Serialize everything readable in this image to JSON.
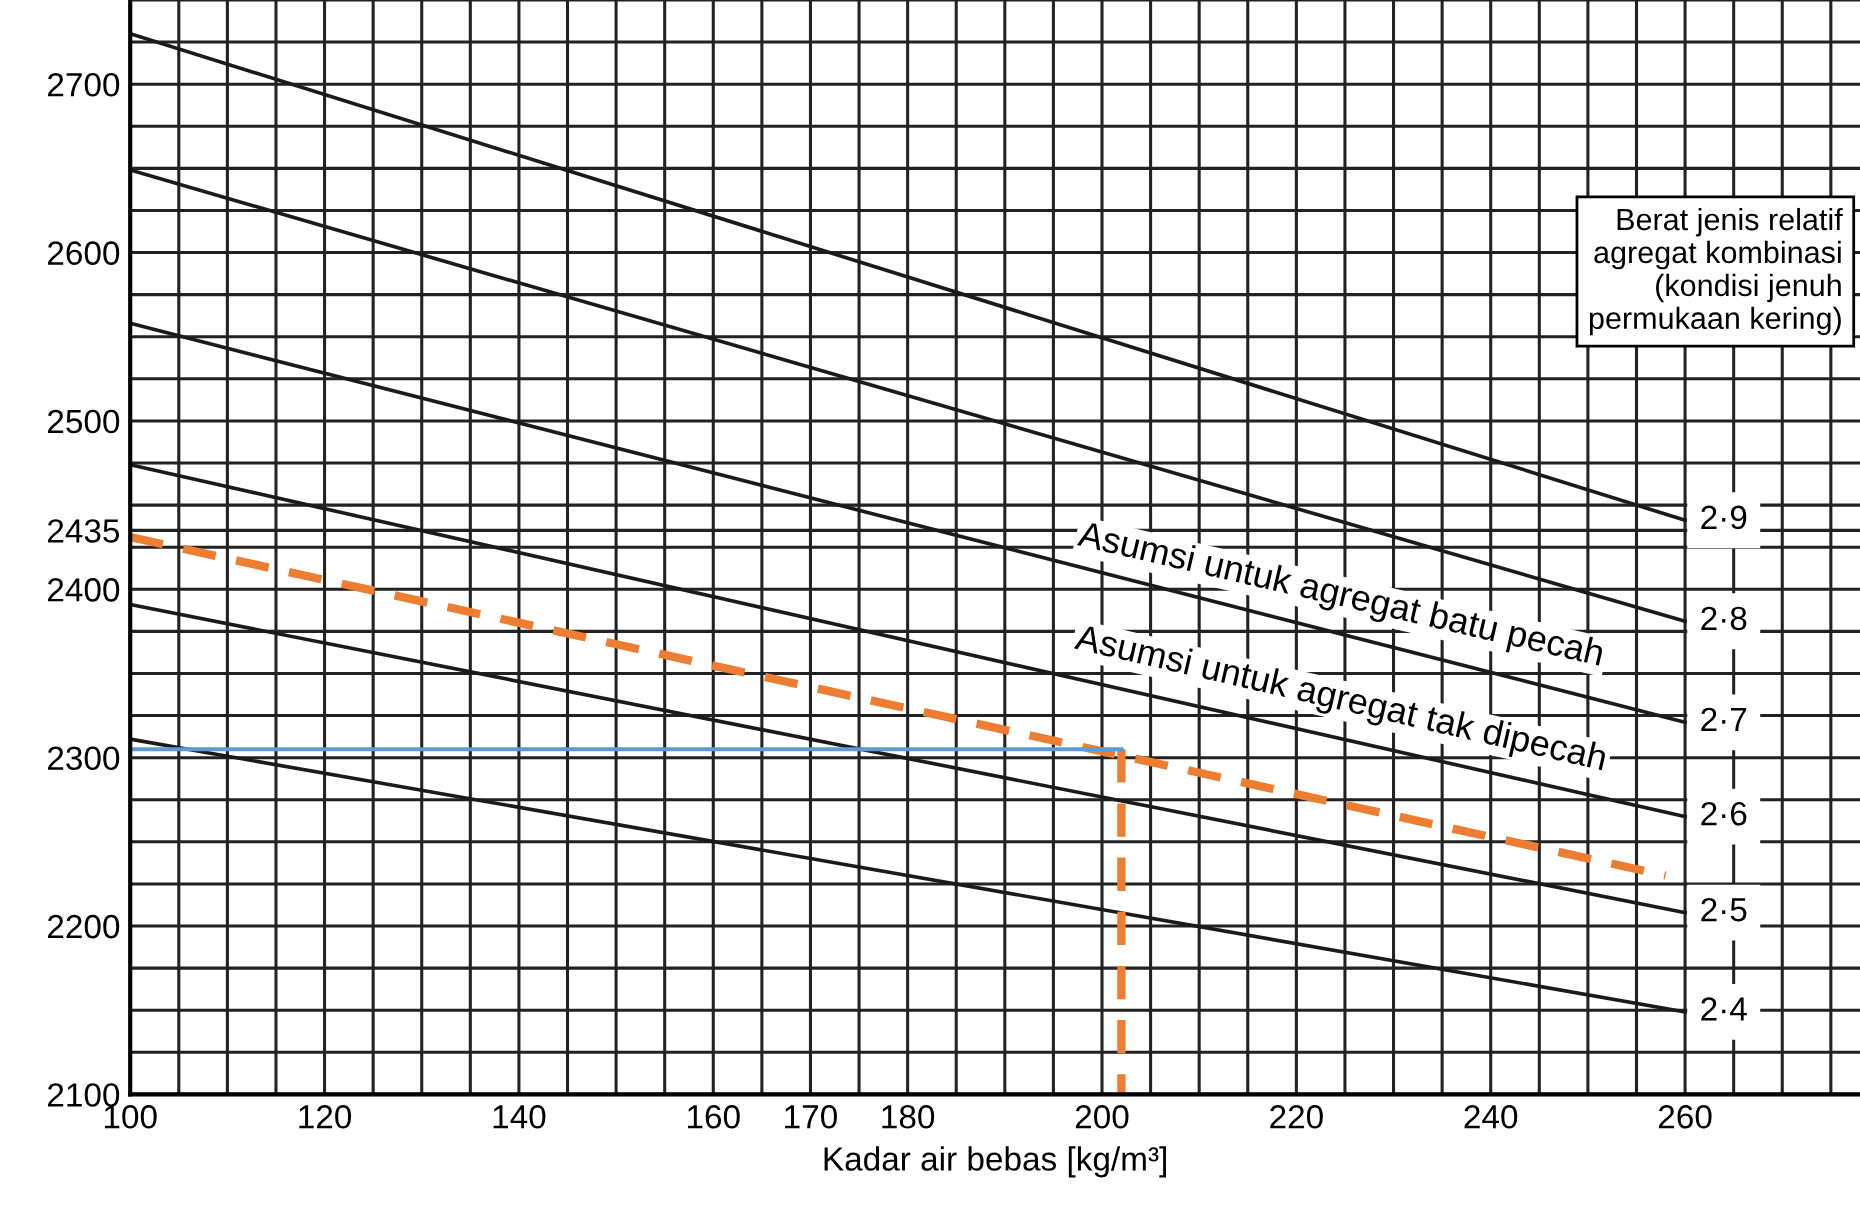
{
  "chart_data": {
    "type": "line",
    "xlabel": "Kadar air bebas [kg/m³]",
    "xlim": [
      100,
      278
    ],
    "ylim": [
      2100,
      2750
    ],
    "xticks": [
      100,
      {
        "value": 105,
        "label": null
      },
      {
        "value": 110,
        "label": null
      },
      {
        "value": 115,
        "label": null
      },
      120,
      {
        "value": 125,
        "label": null
      },
      {
        "value": 130,
        "label": null
      },
      {
        "value": 135,
        "label": null
      },
      140,
      {
        "value": 145,
        "label": null
      },
      {
        "value": 150,
        "label": null
      },
      {
        "value": 155,
        "label": null
      },
      160,
      {
        "value": 165,
        "label": null
      },
      170,
      {
        "value": 175,
        "label": null
      },
      180,
      {
        "value": 185,
        "label": null
      },
      {
        "value": 190,
        "label": null
      },
      {
        "value": 195,
        "label": null
      },
      200,
      {
        "value": 205,
        "label": null
      },
      {
        "value": 210,
        "label": null
      },
      {
        "value": 215,
        "label": null
      },
      220,
      {
        "value": 225,
        "label": null
      },
      {
        "value": 230,
        "label": null
      },
      {
        "value": 235,
        "label": null
      },
      240,
      {
        "value": 245,
        "label": null
      },
      {
        "value": 250,
        "label": null
      },
      {
        "value": 255,
        "label": null
      },
      260,
      {
        "value": 265,
        "label": null
      },
      {
        "value": 270,
        "label": null
      },
      {
        "value": 275,
        "label": null
      }
    ],
    "yticks": [
      2100,
      {
        "value": 2125,
        "label": null
      },
      {
        "value": 2150,
        "label": null
      },
      {
        "value": 2175,
        "label": null
      },
      2200,
      {
        "value": 2225,
        "label": null
      },
      {
        "value": 2250,
        "label": null
      },
      {
        "value": 2275,
        "label": null
      },
      2300,
      {
        "value": 2325,
        "label": null
      },
      {
        "value": 2350,
        "label": null
      },
      {
        "value": 2375,
        "label": null
      },
      2400,
      {
        "value": 2425,
        "label": null
      },
      2435,
      {
        "value": 2450,
        "label": null
      },
      {
        "value": 2475,
        "label": null
      },
      2500,
      {
        "value": 2525,
        "label": null
      },
      {
        "value": 2550,
        "label": null
      },
      {
        "value": 2575,
        "label": null
      },
      2600,
      {
        "value": 2625,
        "label": null
      },
      {
        "value": 2650,
        "label": null
      },
      {
        "value": 2675,
        "label": null
      },
      2700,
      {
        "value": 2725,
        "label": null
      },
      {
        "value": 2750,
        "label": null
      }
    ],
    "grid": true,
    "series": [
      {
        "name": "2·9",
        "color": "#1a1a1a",
        "x": [
          100,
          260
        ],
        "values": [
          2730,
          2441
        ]
      },
      {
        "name": "2·8",
        "color": "#1a1a1a",
        "x": [
          100,
          260
        ],
        "values": [
          2649,
          2381
        ]
      },
      {
        "name": "2·7",
        "color": "#1a1a1a",
        "x": [
          100,
          260
        ],
        "values": [
          2558,
          2321
        ]
      },
      {
        "name": "2·6",
        "color": "#1a1a1a",
        "x": [
          100,
          260
        ],
        "values": [
          2474,
          2265
        ]
      },
      {
        "name": "2·5",
        "color": "#1a1a1a",
        "x": [
          100,
          260
        ],
        "values": [
          2391,
          2208
        ]
      },
      {
        "name": "2·4",
        "color": "#1a1a1a",
        "x": [
          100,
          260
        ],
        "values": [
          2311,
          2149
        ]
      },
      {
        "color": "#ed7d31",
        "line_style": "dashed",
        "x": [
          100,
          258
        ],
        "values": [
          2431,
          2230
        ]
      },
      {
        "color": "#ed7d31",
        "line_style": "dashed",
        "x": [
          202,
          202
        ],
        "values": [
          2305,
          2100
        ]
      },
      {
        "color": "#5b9bd5",
        "x": [
          202,
          100
        ],
        "values": [
          2305,
          2305
        ]
      }
    ],
    "annotations": [
      "Asumsi untuk agregat batu pecah",
      "Asumsi untuk agregat tak dipecah",
      "Berat jenis relatif\nagregat kombinasi\n(kondisi jenuh\npermukaan kering)"
    ]
  }
}
